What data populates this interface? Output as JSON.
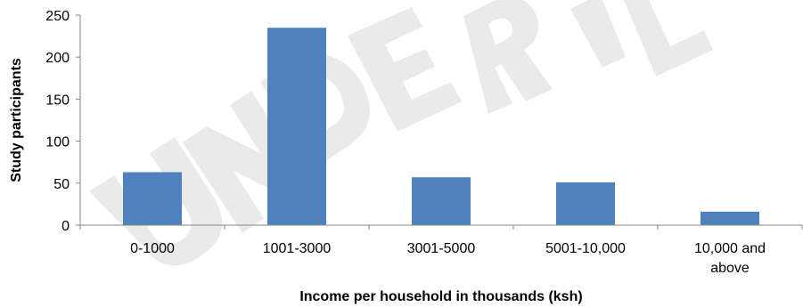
{
  "watermark": "UNDERPLE",
  "chart_data": {
    "type": "bar",
    "categories": [
      [
        "0-1000"
      ],
      [
        "1001-3000"
      ],
      [
        "3001-5000"
      ],
      [
        "5001-10,000"
      ],
      [
        "10,000 and",
        "above"
      ]
    ],
    "values": [
      63,
      235,
      57,
      51,
      16
    ],
    "xlabel": "Income per household in thousands (ksh)",
    "ylabel": "Study participants",
    "ylim": [
      0,
      250
    ],
    "yticks": [
      0,
      50,
      100,
      150,
      200,
      250
    ],
    "bar_color": "#4F81BD",
    "axis_color": "#868686",
    "grid": false,
    "legend": "none"
  }
}
